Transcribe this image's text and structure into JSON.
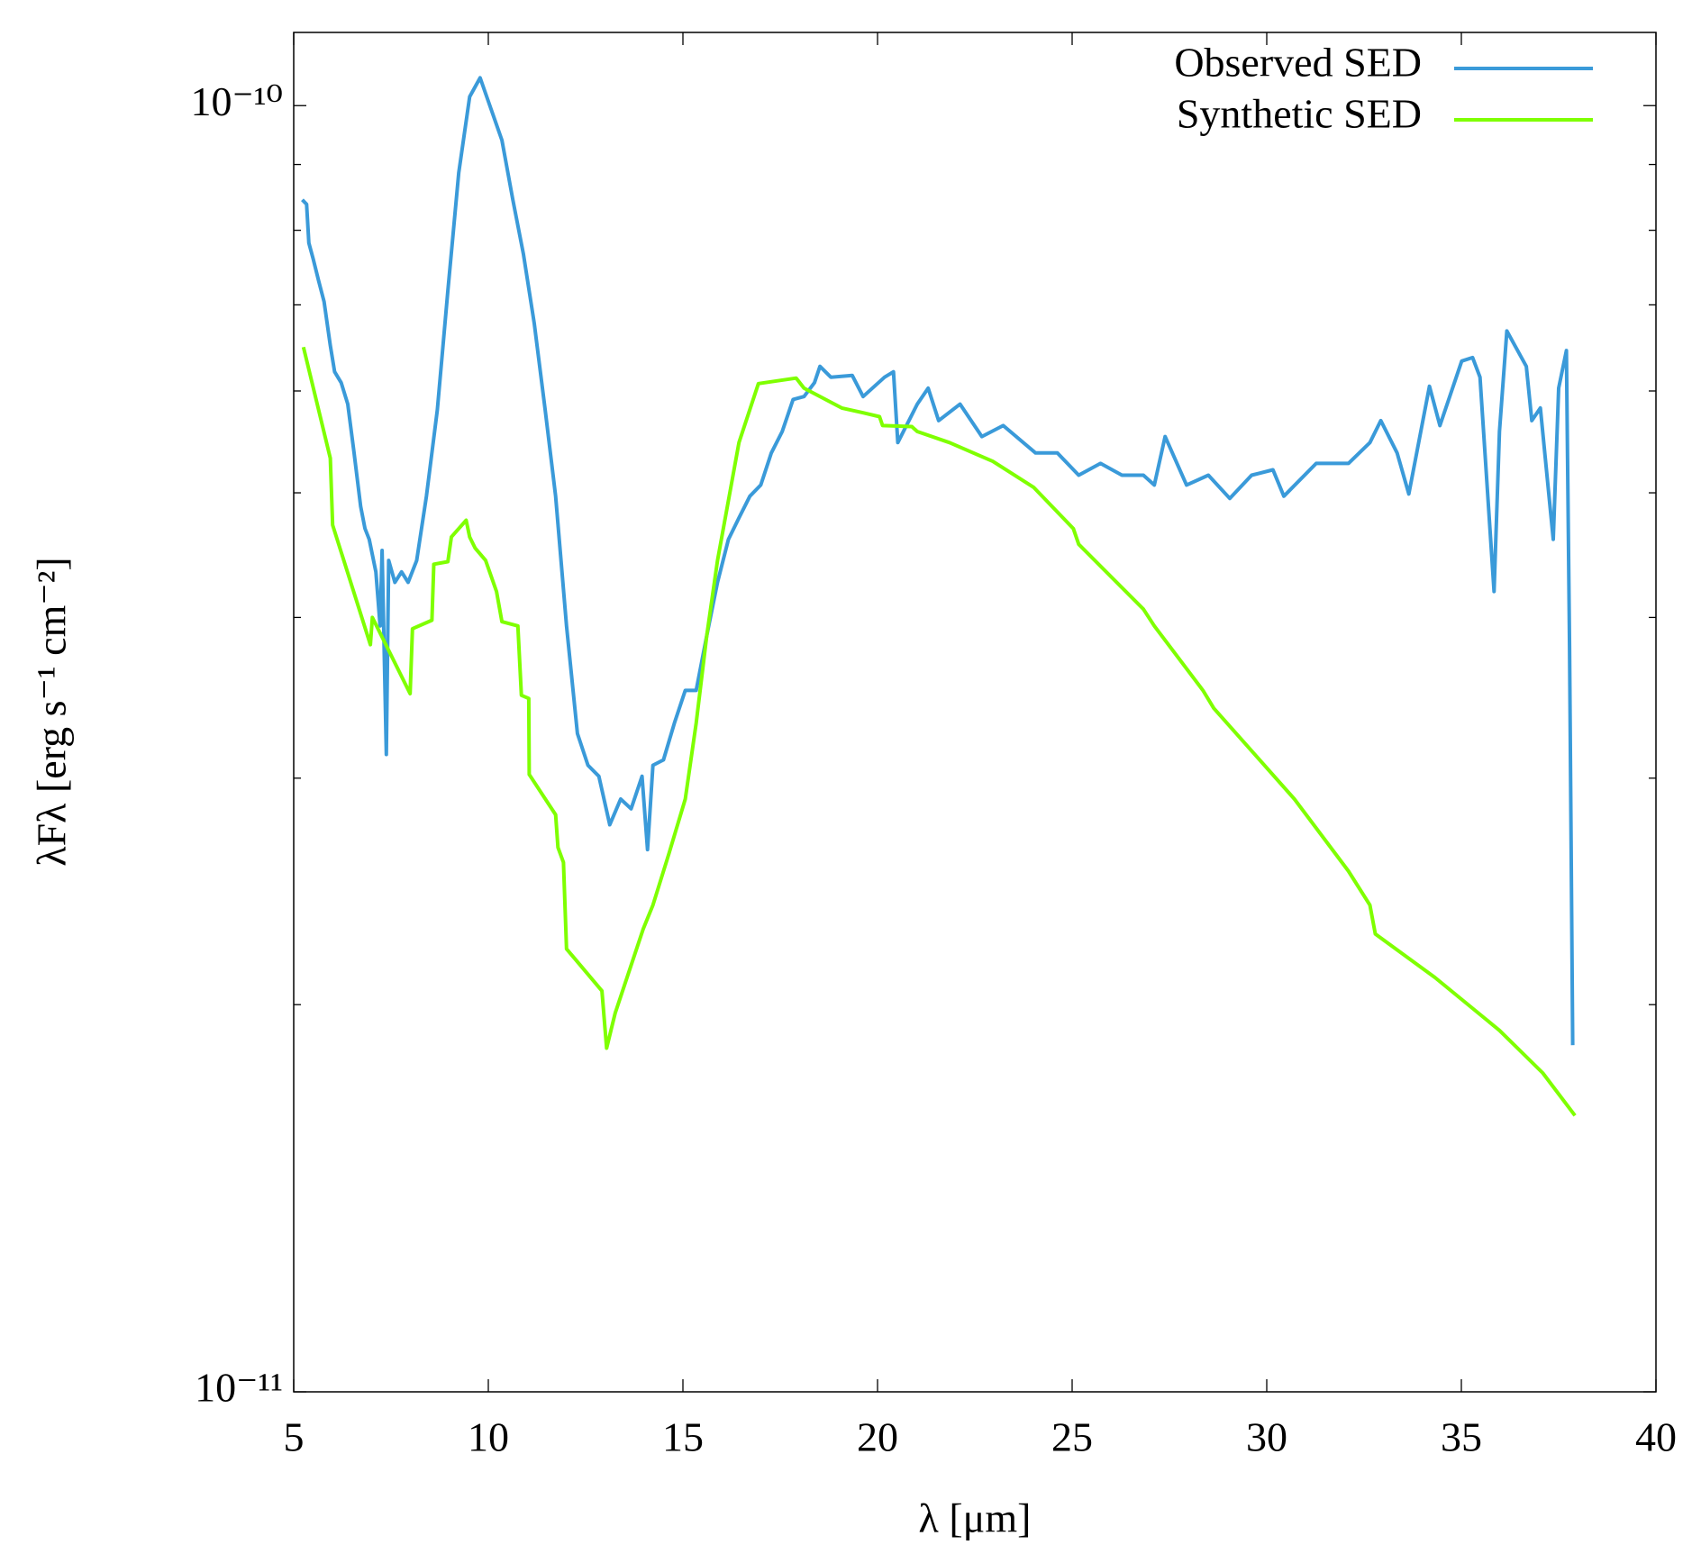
{
  "chart_data": {
    "type": "line",
    "xlabel": "λ [μm]",
    "ylabel": "λFλ [erg s⁻¹ cm⁻²]",
    "xlim": [
      5,
      40
    ],
    "xticks": [
      5,
      10,
      15,
      20,
      25,
      30,
      35,
      40
    ],
    "ylim": [
      1e-11,
      1.14e-10
    ],
    "ylog": true,
    "yticks": [
      {
        "value": 1e-11,
        "label": "10⁻¹¹"
      },
      {
        "value": 1e-10,
        "label": "10⁻¹⁰"
      }
    ],
    "yminor_ticks": [
      2e-11,
      3e-11,
      4e-11,
      5e-11,
      6e-11,
      7e-11,
      8e-11,
      9e-11
    ],
    "grid": false,
    "legend": "upper right",
    "series": [
      {
        "name": "Observed SED",
        "color": "#3a9ad9",
        "x": [
          5.22,
          5.33,
          5.39,
          5.5,
          5.64,
          5.78,
          5.94,
          6.05,
          6.22,
          6.39,
          6.55,
          6.72,
          6.83,
          6.94,
          7.11,
          7.22,
          7.27,
          7.38,
          7.44,
          7.6,
          7.77,
          7.94,
          8.16,
          8.41,
          8.69,
          8.96,
          9.24,
          9.52,
          9.79,
          10.07,
          10.35,
          10.63,
          10.9,
          11.18,
          11.46,
          11.73,
          12.01,
          12.29,
          12.56,
          12.84,
          13.12,
          13.4,
          13.67,
          13.95,
          14.09,
          14.23,
          14.5,
          14.78,
          15.06,
          15.34,
          15.61,
          15.89,
          16.17,
          16.44,
          16.72,
          17.0,
          17.27,
          17.55,
          17.83,
          18.11,
          18.38,
          18.52,
          18.8,
          19.35,
          19.63,
          20.18,
          20.41,
          20.52,
          21.02,
          21.3,
          21.57,
          22.12,
          22.68,
          23.23,
          24.06,
          24.62,
          25.17,
          25.73,
          26.28,
          26.83,
          27.11,
          27.39,
          27.94,
          28.5,
          29.05,
          29.61,
          30.16,
          30.44,
          31.27,
          32.1,
          32.65,
          32.93,
          33.35,
          33.65,
          34.18,
          34.45,
          35.01,
          35.29,
          35.48,
          35.84,
          35.98,
          36.17,
          36.67,
          36.81,
          37.03,
          37.36,
          37.5,
          37.7,
          37.78,
          37.86
        ],
        "values": [
          8.45e-11,
          8.38e-11,
          7.82e-11,
          7.6e-11,
          7.31e-11,
          7.04e-11,
          6.51e-11,
          6.21e-11,
          6.09e-11,
          5.86e-11,
          5.37e-11,
          4.88e-11,
          4.69e-11,
          4.6e-11,
          4.34e-11,
          3.94e-11,
          4.51e-11,
          3.13e-11,
          4.43e-11,
          4.26e-11,
          4.34e-11,
          4.26e-11,
          4.43e-11,
          4.97e-11,
          5.8e-11,
          7.18e-11,
          8.87e-11,
          1.016e-10,
          1.051e-10,
          9.94e-11,
          9.4e-11,
          8.45e-11,
          7.67e-11,
          6.77e-11,
          5.8e-11,
          4.97e-11,
          3.94e-11,
          3.25e-11,
          3.07e-11,
          3.01e-11,
          2.76e-11,
          2.89e-11,
          2.84e-11,
          3.01e-11,
          2.64e-11,
          3.07e-11,
          3.1e-11,
          3.31e-11,
          3.51e-11,
          3.51e-11,
          3.87e-11,
          4.26e-11,
          4.6e-11,
          4.78e-11,
          4.97e-11,
          5.07e-11,
          5.37e-11,
          5.58e-11,
          5.91e-11,
          5.94e-11,
          6.09e-11,
          6.27e-11,
          6.15e-11,
          6.17e-11,
          5.94e-11,
          6.15e-11,
          6.21e-11,
          5.47e-11,
          5.86e-11,
          6.03e-11,
          5.69e-11,
          5.86e-11,
          5.53e-11,
          5.64e-11,
          5.37e-11,
          5.37e-11,
          5.16e-11,
          5.27e-11,
          5.16e-11,
          5.16e-11,
          5.07e-11,
          5.53e-11,
          5.07e-11,
          5.16e-11,
          4.95e-11,
          5.16e-11,
          5.21e-11,
          4.97e-11,
          5.27e-11,
          5.27e-11,
          5.47e-11,
          5.69e-11,
          5.37e-11,
          4.99e-11,
          6.05e-11,
          5.64e-11,
          6.33e-11,
          6.37e-11,
          6.15e-11,
          4.19e-11,
          5.58e-11,
          6.68e-11,
          6.27e-11,
          5.69e-11,
          5.82e-11,
          4.6e-11,
          6.03e-11,
          6.45e-11,
          3.79e-11,
          1.86e-11
        ]
      },
      {
        "name": "Synthetic SED",
        "color": "#7fff00",
        "x": [
          5.25,
          5.94,
          6.0,
          6.97,
          7.02,
          7.99,
          8.05,
          8.55,
          8.6,
          8.96,
          9.05,
          9.43,
          9.52,
          9.66,
          9.93,
          10.21,
          10.35,
          10.76,
          10.85,
          11.04,
          11.05,
          11.73,
          11.79,
          11.93,
          12.01,
          12.92,
          13.04,
          13.26,
          13.98,
          14.23,
          14.64,
          15.06,
          15.34,
          15.61,
          15.89,
          16.44,
          16.94,
          17.91,
          18.11,
          19.08,
          19.63,
          20.05,
          20.13,
          20.88,
          21.02,
          21.85,
          22.96,
          24.01,
          25.03,
          25.17,
          26.83,
          27.11,
          28.36,
          28.64,
          30.71,
          32.1,
          32.65,
          32.79,
          34.32,
          35.98,
          37.09,
          37.92
        ],
        "values": [
          6.49e-11,
          5.32e-11,
          4.72e-11,
          3.81e-11,
          4e-11,
          3.49e-11,
          3.92e-11,
          3.98e-11,
          4.4e-11,
          4.42e-11,
          4.62e-11,
          4.76e-11,
          4.62e-11,
          4.53e-11,
          4.43e-11,
          4.19e-11,
          3.97e-11,
          3.94e-11,
          3.48e-11,
          3.46e-11,
          3.02e-11,
          2.81e-11,
          2.65e-11,
          2.58e-11,
          2.21e-11,
          2.05e-11,
          1.85e-11,
          1.97e-11,
          2.29e-11,
          2.39e-11,
          2.62e-11,
          2.89e-11,
          3.31e-11,
          3.87e-11,
          4.43e-11,
          5.47e-11,
          6.08e-11,
          6.14e-11,
          6.03e-11,
          5.82e-11,
          5.77e-11,
          5.73e-11,
          5.64e-11,
          5.63e-11,
          5.58e-11,
          5.47e-11,
          5.29e-11,
          5.05e-11,
          4.69e-11,
          4.56e-11,
          4.06e-11,
          3.94e-11,
          3.51e-11,
          3.4e-11,
          2.89e-11,
          2.54e-11,
          2.39e-11,
          2.27e-11,
          2.1e-11,
          1.91e-11,
          1.77e-11,
          1.64e-11
        ]
      }
    ]
  }
}
